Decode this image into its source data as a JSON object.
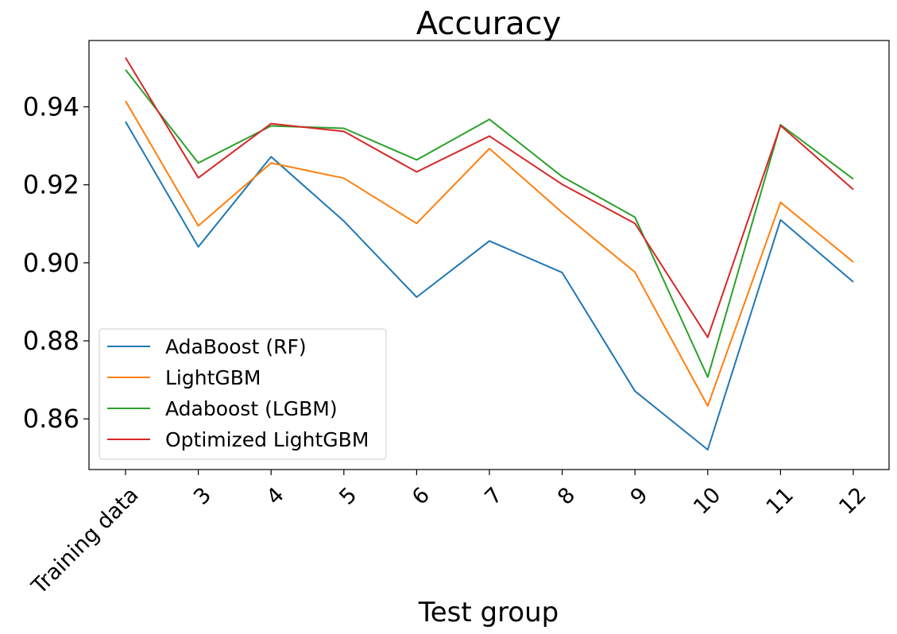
{
  "chart_data": {
    "type": "line",
    "title": "Accuracy",
    "xlabel": "Test group",
    "ylabel": "",
    "categories": [
      "Training data",
      "3",
      "4",
      "5",
      "6",
      "7",
      "8",
      "9",
      "10",
      "11",
      "12"
    ],
    "ylim": [
      0.847,
      0.957
    ],
    "yticks": [
      "0.86",
      "0.88",
      "0.90",
      "0.92",
      "0.94"
    ],
    "ytick_values": [
      0.86,
      0.88,
      0.9,
      0.92,
      0.94
    ],
    "grid": false,
    "legend_position": "lower-left",
    "series": [
      {
        "name": "AdaBoost (RF)",
        "color": "#1f77b4",
        "values": [
          0.9362,
          0.9041,
          0.9272,
          0.9107,
          0.8912,
          0.9056,
          0.8975,
          0.8671,
          0.8521,
          0.911,
          0.8951
        ]
      },
      {
        "name": "LightGBM",
        "color": "#ff7f0e",
        "values": [
          0.9415,
          0.9095,
          0.9256,
          0.9217,
          0.9101,
          0.9293,
          0.9129,
          0.8976,
          0.8633,
          0.9155,
          0.9002
        ]
      },
      {
        "name": "Adaboost (LGBM)",
        "color": "#2ca02c",
        "values": [
          0.9495,
          0.9256,
          0.9351,
          0.9345,
          0.9264,
          0.9368,
          0.9221,
          0.9117,
          0.8707,
          0.9354,
          0.9215
        ]
      },
      {
        "name": "Optimized LightGBM",
        "color": "#d62728",
        "values": [
          0.9526,
          0.9218,
          0.9357,
          0.9337,
          0.9233,
          0.9325,
          0.9201,
          0.9101,
          0.8809,
          0.9352,
          0.9188
        ]
      }
    ]
  }
}
